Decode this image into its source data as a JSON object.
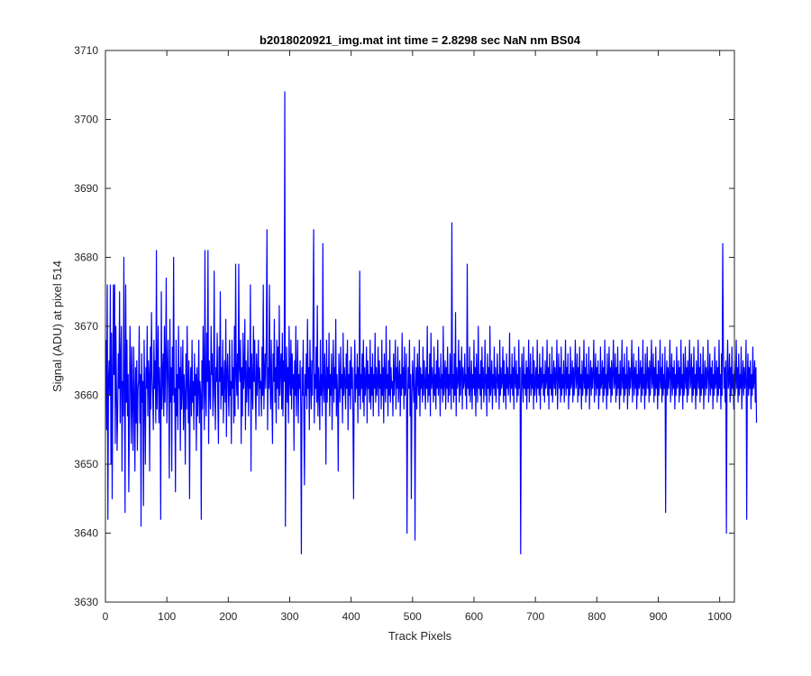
{
  "chart_data": {
    "type": "line",
    "title": "b2018020921_img.mat int time = 2.8298 sec  NaN nm BS04",
    "xlabel": "Track Pixels",
    "ylabel": "Signal (ADU) at pixel 514",
    "xlim": [
      0,
      1024
    ],
    "ylim": [
      3630,
      3710
    ],
    "xticks": [
      0,
      100,
      200,
      300,
      400,
      500,
      600,
      700,
      800,
      900,
      1000
    ],
    "yticks": [
      3630,
      3640,
      3650,
      3660,
      3670,
      3680,
      3690,
      3700,
      3710
    ],
    "grid": false,
    "legend": "none",
    "series": [
      {
        "color": "#0000ff",
        "x_start": 1,
        "x_step": 1,
        "values": [
          3668,
          3655,
          3676,
          3642,
          3662,
          3665,
          3660,
          3676,
          3650,
          3669,
          3645,
          3661,
          3676,
          3663,
          3676,
          3653,
          3670,
          3661,
          3652,
          3658,
          3666,
          3661,
          3675,
          3656,
          3665,
          3670,
          3649,
          3662,
          3657,
          3680,
          3661,
          3643,
          3676,
          3659,
          3668,
          3657,
          3663,
          3646,
          3656,
          3670,
          3663,
          3653,
          3667,
          3659,
          3652,
          3667,
          3660,
          3649,
          3664,
          3656,
          3665,
          3652,
          3661,
          3662,
          3670,
          3656,
          3663,
          3641,
          3666,
          3659,
          3662,
          3644,
          3668,
          3660,
          3650,
          3664,
          3661,
          3670,
          3657,
          3665,
          3663,
          3649,
          3667,
          3658,
          3672,
          3663,
          3660,
          3655,
          3668,
          3661,
          3665,
          3656,
          3681,
          3658,
          3663,
          3670,
          3656,
          3664,
          3660,
          3642,
          3675,
          3658,
          3663,
          3666,
          3657,
          3670,
          3659,
          3665,
          3677,
          3656,
          3663,
          3668,
          3661,
          3648,
          3671,
          3659,
          3664,
          3649,
          3667,
          3660,
          3680,
          3659,
          3661,
          3646,
          3668,
          3657,
          3663,
          3655,
          3670,
          3661,
          3664,
          3652,
          3667,
          3658,
          3661,
          3668,
          3655,
          3663,
          3660,
          3650,
          3666,
          3658,
          3670,
          3662,
          3656,
          3665,
          3645,
          3661,
          3664,
          3657,
          3668,
          3659,
          3662,
          3655,
          3666,
          3660,
          3663,
          3652,
          3664,
          3657,
          3661,
          3668,
          3656,
          3662,
          3660,
          3642,
          3665,
          3658,
          3670,
          3663,
          3655,
          3681,
          3660,
          3657,
          3669,
          3662,
          3681,
          3653,
          3665,
          3661,
          3658,
          3670,
          3663,
          3666,
          3657,
          3660,
          3678,
          3661,
          3655,
          3664,
          3662,
          3669,
          3659,
          3653,
          3667,
          3662,
          3675,
          3658,
          3664,
          3660,
          3668,
          3656,
          3662,
          3665,
          3659,
          3671,
          3654,
          3663,
          3666,
          3661,
          3657,
          3668,
          3660,
          3662,
          3653,
          3668,
          3661,
          3664,
          3656,
          3670,
          3657,
          3679,
          3663,
          3660,
          3666,
          3658,
          3679,
          3664,
          3662,
          3668,
          3653,
          3664,
          3657,
          3669,
          3661,
          3663,
          3671,
          3655,
          3665,
          3659,
          3662,
          3668,
          3657,
          3664,
          3661,
          3676,
          3649,
          3666,
          3662,
          3658,
          3670,
          3662,
          3668,
          3661,
          3655,
          3666,
          3660,
          3663,
          3668,
          3657,
          3664,
          3661,
          3662,
          3657,
          3667,
          3660,
          3676,
          3658,
          3663,
          3666,
          3661,
          3669,
          3684,
          3655,
          3664,
          3661,
          3676,
          3662,
          3658,
          3668,
          3660,
          3653,
          3666,
          3662,
          3671,
          3659,
          3664,
          3656,
          3668,
          3661,
          3667,
          3658,
          3673,
          3660,
          3664,
          3666,
          3658,
          3669,
          3657,
          3665,
          3662,
          3704,
          3641,
          3661,
          3667,
          3659,
          3664,
          3656,
          3670,
          3662,
          3660,
          3668,
          3658,
          3666,
          3661,
          3663,
          3652,
          3665,
          3660,
          3670,
          3657,
          3662,
          3668,
          3656,
          3663,
          3661,
          3665,
          3658,
          3637,
          3664,
          3660,
          3668,
          3657,
          3647,
          3663,
          3660,
          3666,
          3658,
          3671,
          3661,
          3664,
          3655,
          3668,
          3662,
          3658,
          3665,
          3660,
          3670,
          3684,
          3656,
          3663,
          3661,
          3667,
          3659,
          3673,
          3657,
          3664,
          3661,
          3655,
          3668,
          3660,
          3663,
          3657,
          3682,
          3661,
          3659,
          3666,
          3662,
          3650,
          3668,
          3659,
          3664,
          3661,
          3669,
          3657,
          3663,
          3660,
          3666,
          3655,
          3662,
          3668,
          3659,
          3664,
          3661,
          3671,
          3657,
          3663,
          3660,
          3649,
          3666,
          3662,
          3659,
          3667,
          3661,
          3663,
          3656,
          3669,
          3660,
          3664,
          3662,
          3658,
          3666,
          3661,
          3668,
          3655,
          3663,
          3660,
          3665,
          3658,
          3667,
          3661,
          3664,
          3657,
          3645,
          3662,
          3668,
          3659,
          3663,
          3661,
          3666,
          3656,
          3664,
          3660,
          3678,
          3658,
          3663,
          3661,
          3666,
          3659,
          3668,
          3657,
          3664,
          3660,
          3662,
          3667,
          3656,
          3665,
          3661,
          3663,
          3659,
          3668,
          3658,
          3664,
          3660,
          3666,
          3657,
          3663,
          3661,
          3669,
          3659,
          3664,
          3660,
          3662,
          3667,
          3657,
          3665,
          3661,
          3663,
          3658,
          3668,
          3660,
          3664,
          3656,
          3666,
          3662,
          3659,
          3670,
          3661,
          3663,
          3657,
          3665,
          3660,
          3668,
          3659,
          3664,
          3661,
          3662,
          3657,
          3666,
          3660,
          3663,
          3668,
          3658,
          3664,
          3661,
          3667,
          3659,
          3662,
          3665,
          3657,
          3663,
          3660,
          3669,
          3661,
          3664,
          3658,
          3667,
          3660,
          3662,
          3666,
          3640,
          3659,
          3664,
          3661,
          3668,
          3657,
          3663,
          3645,
          3660,
          3665,
          3662,
          3659,
          3667,
          3639,
          3661,
          3664,
          3658,
          3666,
          3662,
          3660,
          3668,
          3657,
          3664,
          3661,
          3663,
          3659,
          3667,
          3660,
          3665,
          3662,
          3658,
          3664,
          3661,
          3670,
          3659,
          3663,
          3660,
          3666,
          3657,
          3669,
          3661,
          3664,
          3662,
          3659,
          3667,
          3660,
          3663,
          3658,
          3665,
          3661,
          3668,
          3660,
          3664,
          3662,
          3657,
          3666,
          3661,
          3663,
          3659,
          3670,
          3660,
          3662,
          3665,
          3658,
          3664,
          3661,
          3667,
          3659,
          3663,
          3660,
          3666,
          3662,
          3658,
          3685,
          3661,
          3663,
          3659,
          3666,
          3660,
          3672,
          3657,
          3664,
          3661,
          3662,
          3668,
          3659,
          3665,
          3660,
          3663,
          3667,
          3658,
          3664,
          3661,
          3662,
          3666,
          3660,
          3663,
          3658,
          3679,
          3661,
          3664,
          3660,
          3667,
          3659,
          3662,
          3665,
          3658,
          3663,
          3661,
          3668,
          3660,
          3664,
          3657,
          3666,
          3662,
          3659,
          3670,
          3661,
          3663,
          3660,
          3665,
          3658,
          3667,
          3661,
          3664,
          3659,
          3662,
          3668,
          3660,
          3663,
          3657,
          3666,
          3661,
          3664,
          3659,
          3670,
          3660,
          3662,
          3665,
          3658,
          3663,
          3661,
          3667,
          3660,
          3664,
          3659,
          3662,
          3666,
          3661,
          3663,
          3658,
          3668,
          3660,
          3664,
          3661,
          3662,
          3667,
          3659,
          3665,
          3660,
          3663,
          3658,
          3666,
          3661,
          3664,
          3660,
          3662,
          3669,
          3659,
          3663,
          3661,
          3666,
          3660,
          3664,
          3658,
          3667,
          3662,
          3661,
          3665,
          3659,
          3663,
          3660,
          3668,
          3661,
          3664,
          3637,
          3660,
          3666,
          3662,
          3659,
          3667,
          3661,
          3663,
          3660,
          3665,
          3658,
          3664,
          3661,
          3668,
          3659,
          3662,
          3666,
          3660,
          3663,
          3661,
          3667,
          3658,
          3665,
          3660,
          3662,
          3664,
          3659,
          3668,
          3661,
          3663,
          3660,
          3666,
          3658,
          3664,
          3661,
          3662,
          3667,
          3660,
          3663,
          3659,
          3665,
          3661,
          3662,
          3668,
          3660,
          3664,
          3658,
          3666,
          3661,
          3663,
          3660,
          3667,
          3659,
          3662,
          3665,
          3661,
          3664,
          3660,
          3663,
          3668,
          3658,
          3662,
          3666,
          3661,
          3664,
          3659,
          3667,
          3660,
          3663,
          3661,
          3665,
          3659,
          3662,
          3668,
          3660,
          3664,
          3661,
          3666,
          3658,
          3663,
          3660,
          3667,
          3661,
          3662,
          3665,
          3659,
          3664,
          3660,
          3663,
          3668,
          3661,
          3662,
          3666,
          3659,
          3664,
          3660,
          3667,
          3661,
          3663,
          3658,
          3665,
          3660,
          3662,
          3668,
          3661,
          3664,
          3659,
          3666,
          3660,
          3663,
          3661,
          3667,
          3658,
          3662,
          3665,
          3660,
          3664,
          3661,
          3663,
          3668,
          3659,
          3662,
          3666,
          3660,
          3664,
          3661,
          3665,
          3658,
          3663,
          3660,
          3667,
          3661,
          3662,
          3665,
          3659,
          3664,
          3660,
          3668,
          3661,
          3663,
          3658,
          3666,
          3660,
          3662,
          3667,
          3661,
          3664,
          3659,
          3665,
          3660,
          3663,
          3668,
          3661,
          3662,
          3666,
          3659,
          3664,
          3660,
          3667,
          3661,
          3663,
          3658,
          3665,
          3660,
          3662,
          3668,
          3661,
          3664,
          3659,
          3666,
          3660,
          3663,
          3661,
          3667,
          3658,
          3662,
          3665,
          3660,
          3664,
          3661,
          3663,
          3668,
          3659,
          3662,
          3666,
          3660,
          3664,
          3661,
          3665,
          3658,
          3663,
          3660,
          3667,
          3661,
          3662,
          3665,
          3659,
          3664,
          3660,
          3668,
          3661,
          3663,
          3658,
          3666,
          3660,
          3662,
          3667,
          3661,
          3664,
          3659,
          3665,
          3660,
          3663,
          3668,
          3661,
          3662,
          3666,
          3659,
          3664,
          3660,
          3667,
          3661,
          3663,
          3658,
          3665,
          3660,
          3662,
          3668,
          3661,
          3664,
          3659,
          3666,
          3660,
          3663,
          3661,
          3667,
          3643,
          3662,
          3665,
          3660,
          3664,
          3661,
          3663,
          3668,
          3659,
          3662,
          3666,
          3660,
          3664,
          3661,
          3665,
          3658,
          3663,
          3660,
          3667,
          3661,
          3662,
          3665,
          3659,
          3664,
          3660,
          3668,
          3661,
          3663,
          3658,
          3666,
          3660,
          3662,
          3667,
          3661,
          3664,
          3659,
          3665,
          3660,
          3663,
          3668,
          3661,
          3662,
          3666,
          3659,
          3664,
          3660,
          3667,
          3661,
          3663,
          3658,
          3665,
          3660,
          3662,
          3668,
          3661,
          3664,
          3659,
          3666,
          3660,
          3663,
          3661,
          3667,
          3658,
          3662,
          3665,
          3660,
          3664,
          3661,
          3663,
          3668,
          3659,
          3662,
          3666,
          3660,
          3664,
          3661,
          3665,
          3658,
          3663,
          3660,
          3667,
          3661,
          3662,
          3665,
          3659,
          3664,
          3660,
          3668,
          3661,
          3663,
          3658,
          3666,
          3660,
          3682,
          3667,
          3661,
          3664,
          3659,
          3665,
          3640,
          3663,
          3668,
          3661,
          3662,
          3666,
          3659,
          3664,
          3660,
          3667,
          3661,
          3663,
          3658,
          3665,
          3660,
          3662,
          3668,
          3661,
          3664,
          3659,
          3666,
          3660,
          3663,
          3661,
          3667,
          3658,
          3662,
          3665,
          3660,
          3664,
          3661,
          3663,
          3668,
          3642,
          3662,
          3666,
          3660,
          3664,
          3661,
          3665,
          3658,
          3663,
          3660,
          3667,
          3661,
          3662,
          3665,
          3659,
          3664,
          3656
        ]
      }
    ]
  }
}
